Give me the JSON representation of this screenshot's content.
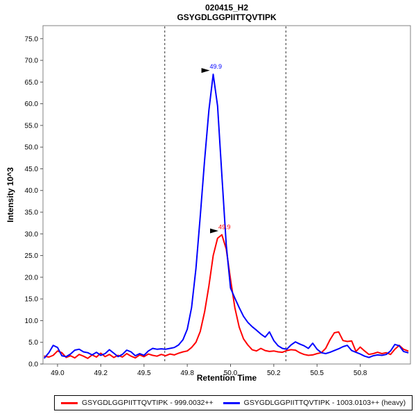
{
  "title": {
    "line1": "020415_H2",
    "line2": "GSYGDLGGPIITTQVTIPK"
  },
  "axes": {
    "x_label": "Retention Time",
    "y_label": "Intensity 10^3"
  },
  "legend": {
    "items": [
      {
        "key": "light",
        "label": "GSYGDLGGPIITTQVTIPK - 999.0032++",
        "color": "#ff0000"
      },
      {
        "key": "heavy",
        "label": "GSYGDLGGPIITTQVTIPK - 1003.0103++ (heavy)",
        "color": "#0000ff"
      }
    ]
  },
  "chart_data": {
    "type": "line",
    "title": "020415_H2 GSYGDLGGPIITTQVTIPK",
    "xlabel": "Retention Time",
    "ylabel": "Intensity 10^3",
    "xlim": [
      48.916,
      51.04
    ],
    "ylim": [
      0,
      78
    ],
    "grid": false,
    "legend_position": "bottom",
    "frame_color": "#808080",
    "x_ticks": {
      "values": [
        49.0,
        49.25,
        49.5,
        49.75,
        50.0,
        50.25,
        50.5,
        50.75
      ],
      "labels": [
        "49.0",
        "49.2",
        "49.5",
        "49.8",
        "50.0",
        "50.2",
        "50.5",
        "50.8"
      ]
    },
    "y_ticks": {
      "values": [
        0,
        5,
        10,
        15,
        20,
        25,
        30,
        35,
        40,
        45,
        50,
        55,
        60,
        65,
        70,
        75
      ],
      "labels": [
        "0.0",
        "5.0",
        "10.0",
        "15.0",
        "20.0",
        "25.0",
        "30.0",
        "35.0",
        "40.0",
        "45.0",
        "50.0",
        "55.0",
        "60.0",
        "65.0",
        "70.0",
        "75.0"
      ]
    },
    "integration_boundaries": [
      49.62,
      50.32
    ],
    "x": [
      48.925,
      48.95,
      48.975,
      49.0,
      49.025,
      49.05,
      49.075,
      49.1,
      49.125,
      49.15,
      49.175,
      49.2,
      49.225,
      49.25,
      49.275,
      49.3,
      49.325,
      49.35,
      49.375,
      49.4,
      49.425,
      49.45,
      49.475,
      49.5,
      49.525,
      49.55,
      49.575,
      49.6,
      49.625,
      49.65,
      49.675,
      49.7,
      49.725,
      49.75,
      49.775,
      49.8,
      49.825,
      49.85,
      49.875,
      49.9,
      49.925,
      49.95,
      49.975,
      50.0,
      50.025,
      50.05,
      50.075,
      50.1,
      50.125,
      50.15,
      50.175,
      50.2,
      50.225,
      50.25,
      50.275,
      50.3,
      50.325,
      50.35,
      50.375,
      50.4,
      50.425,
      50.45,
      50.475,
      50.5,
      50.525,
      50.55,
      50.575,
      50.6,
      50.625,
      50.65,
      50.675,
      50.7,
      50.725,
      50.75,
      50.775,
      50.8,
      50.825,
      50.85,
      50.875,
      50.9,
      50.925,
      50.95,
      50.975,
      51.0,
      51.025
    ],
    "series": [
      {
        "key": "light",
        "name": "GSYGDLGGPIITTQVTIPK - 999.0032++",
        "color": "#ff0000",
        "values": [
          1.8,
          1.6,
          2.0,
          3.0,
          2.6,
          1.5,
          1.9,
          1.4,
          2.2,
          1.8,
          1.3,
          2.1,
          1.6,
          2.5,
          1.7,
          2.2,
          1.5,
          2.0,
          1.6,
          2.4,
          1.8,
          1.4,
          2.1,
          1.7,
          2.3,
          2.0,
          1.8,
          2.2,
          1.9,
          2.3,
          2.1,
          2.5,
          2.8,
          3.0,
          3.8,
          5.0,
          7.5,
          12.0,
          18.0,
          25.0,
          29.0,
          29.8,
          26.5,
          19.5,
          13.0,
          8.5,
          5.8,
          4.4,
          3.3,
          3.0,
          3.6,
          3.1,
          2.9,
          3.0,
          2.8,
          2.7,
          3.1,
          3.3,
          3.2,
          2.6,
          2.2,
          2.0,
          2.1,
          2.4,
          2.6,
          3.6,
          5.6,
          7.2,
          7.4,
          5.4,
          5.2,
          5.3,
          2.9,
          3.9,
          3.0,
          2.2,
          2.4,
          2.7,
          2.4,
          2.6,
          2.2,
          3.4,
          4.3,
          3.4,
          3.0
        ]
      },
      {
        "key": "heavy",
        "name": "GSYGDLGGPIITTQVTIPK - 1003.0103++ (heavy)",
        "color": "#0000ff",
        "values": [
          1.4,
          2.6,
          4.3,
          3.8,
          1.9,
          1.7,
          2.3,
          3.2,
          3.4,
          2.8,
          2.6,
          2.1,
          2.7,
          2.0,
          2.4,
          3.3,
          2.5,
          1.7,
          2.2,
          3.2,
          2.8,
          1.9,
          2.4,
          2.0,
          3.0,
          3.6,
          3.4,
          3.5,
          3.4,
          3.6,
          3.8,
          4.4,
          5.6,
          8.0,
          13.0,
          22.0,
          34.0,
          47.0,
          58.5,
          66.8,
          59.5,
          43.5,
          27.5,
          17.5,
          15.2,
          13.0,
          11.0,
          9.6,
          8.6,
          7.8,
          6.9,
          6.2,
          7.4,
          5.4,
          4.2,
          3.6,
          3.4,
          4.4,
          5.1,
          4.6,
          4.2,
          3.6,
          4.8,
          3.4,
          2.6,
          2.4,
          2.7,
          3.1,
          3.5,
          4.0,
          4.3,
          3.1,
          2.7,
          2.3,
          1.8,
          1.5,
          1.9,
          2.1,
          2.0,
          2.2,
          3.0,
          4.5,
          4.2,
          2.9,
          2.6
        ]
      }
    ],
    "annotations": [
      {
        "text": "49.9",
        "rt": 49.9,
        "intensity": 66.8,
        "series": "heavy",
        "color": "#0000ff"
      },
      {
        "text": "49.9",
        "rt": 49.95,
        "intensity": 29.8,
        "series": "light",
        "color": "#ff0000"
      }
    ]
  }
}
